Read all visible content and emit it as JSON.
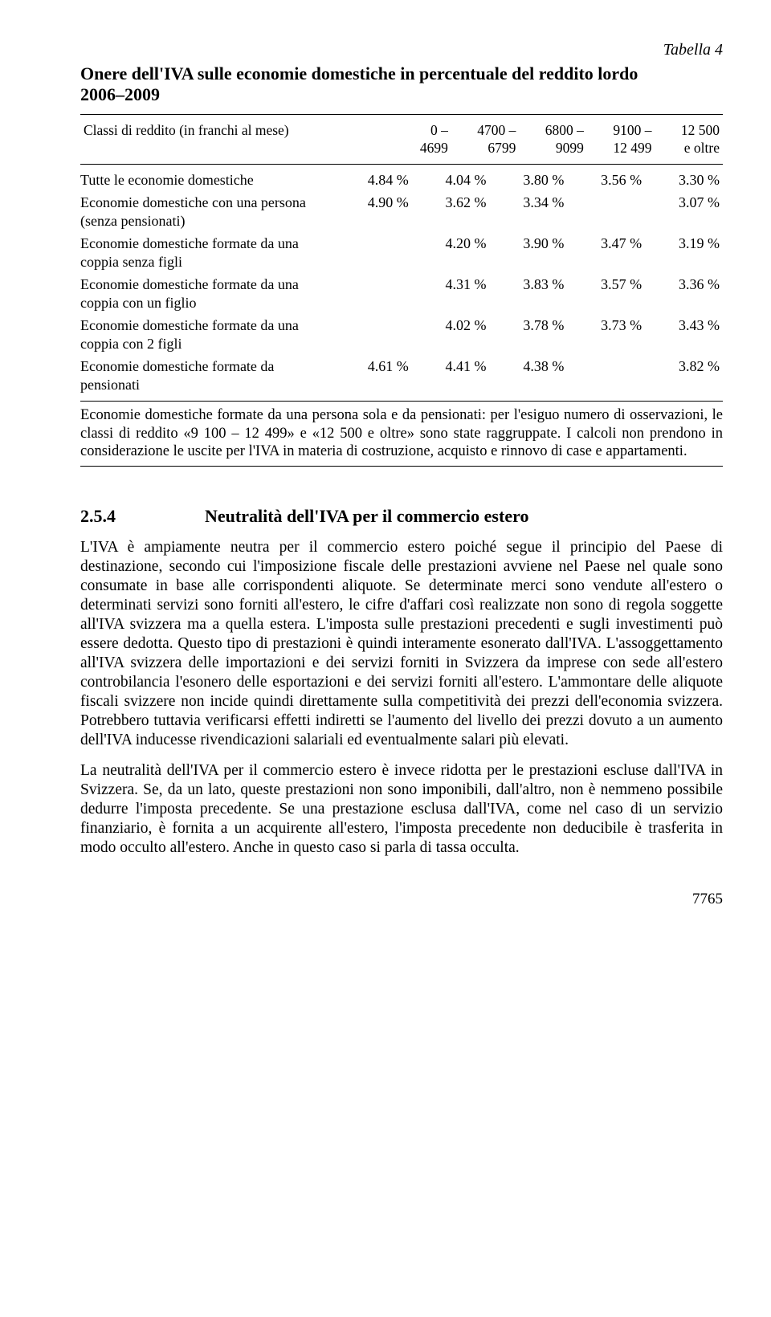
{
  "table": {
    "label": "Tabella 4",
    "title_l1": "Onere dell'IVA sulle economie domestiche in percentuale del reddito lordo",
    "title_l2": "2006–2009",
    "header_label": "Classi di reddito (in franchi al mese)",
    "cols": [
      {
        "l1": "0 –",
        "l2": "4699"
      },
      {
        "l1": "4700 –",
        "l2": "6799"
      },
      {
        "l1": "6800 –",
        "l2": "9099"
      },
      {
        "l1": "9100 –",
        "l2": "12 499"
      },
      {
        "l1": "12 500",
        "l2": "e oltre"
      }
    ],
    "rows": [
      {
        "label": "Tutte le economie domestiche",
        "v": [
          "4.84 %",
          "4.04 %",
          "3.80 %",
          "3.56 %",
          "3.30 %"
        ],
        "merge45": false
      },
      {
        "label": "Economie domestiche con una persona (senza pensionati)",
        "v": [
          "4.90 %",
          "3.62 %",
          "3.34 %",
          "",
          "3.07 %"
        ],
        "merge45": true
      },
      {
        "label": "Economie domestiche formate da una coppia senza figli",
        "v": [
          "",
          "4.20 %",
          "3.90 %",
          "3.47 %",
          "3.19 %"
        ],
        "merge45": false
      },
      {
        "label": "Economie domestiche formate da una coppia con un figlio",
        "v": [
          "",
          "4.31 %",
          "3.83 %",
          "3.57 %",
          "3.36 %"
        ],
        "merge45": false
      },
      {
        "label": "Economie domestiche formate da una coppia con 2 figli",
        "v": [
          "",
          "4.02 %",
          "3.78 %",
          "3.73 %",
          "3.43 %"
        ],
        "merge45": false
      },
      {
        "label": "Economie domestiche formate da pensionati",
        "v": [
          "4.61 %",
          "4.41 %",
          "4.38 %",
          "",
          "3.82 %"
        ],
        "merge45": true
      }
    ],
    "footnote": "Economie domestiche formate da una persona sola e da pensionati: per l'esiguo numero di osservazioni, le classi di reddito «9 100 – 12 499» e «12 500 e oltre» sono state raggruppate. I calcoli non prendono in considerazione le uscite per l'IVA in materia di costruzione, acquisto e rinnovo di case e appartamenti."
  },
  "section": {
    "num": "2.5.4",
    "title": "Neutralità dell'IVA per il commercio estero"
  },
  "paras": {
    "p1": "L'IVA è ampiamente neutra per il commercio estero poiché segue il principio del Paese di destinazione, secondo cui l'imposizione fiscale delle prestazioni avviene nel Paese nel quale sono consumate in base alle corrispondenti aliquote. Se determinate merci sono vendute all'estero o determinati servizi sono forniti all'estero, le cifre d'affari così realizzate non sono di regola soggette all'IVA svizzera ma a quella estera. L'imposta sulle prestazioni precedenti e sugli investimenti può essere dedotta. Questo tipo di prestazioni è quindi interamente esonerato dall'IVA. L'assoggettamento all'IVA svizzera delle importazioni e dei servizi forniti in Svizzera da imprese con sede all'estero controbilancia l'esonero delle esportazioni e dei servizi forniti all'estero. L'ammontare delle aliquote fiscali svizzere non incide quindi direttamente sulla competitività dei prezzi dell'economia svizzera. Potrebbero tuttavia verificarsi effetti indiretti se l'aumento del livello dei prezzi dovuto a un aumento dell'IVA inducesse rivendicazioni salariali ed eventualmente salari più elevati.",
    "p2": "La neutralità dell'IVA per il commercio estero è invece ridotta per le prestazioni escluse dall'IVA in Svizzera. Se, da un lato, queste prestazioni non sono imponibili, dall'altro, non è nemmeno possibile dedurre l'imposta precedente. Se una prestazione esclusa dall'IVA, come nel caso di un servizio finanziario, è fornita a un acquirente all'estero, l'imposta precedente non deducibile è trasferita in modo occulto all'estero. Anche in questo caso si parla di tassa occulta."
  },
  "pagenum": "7765"
}
